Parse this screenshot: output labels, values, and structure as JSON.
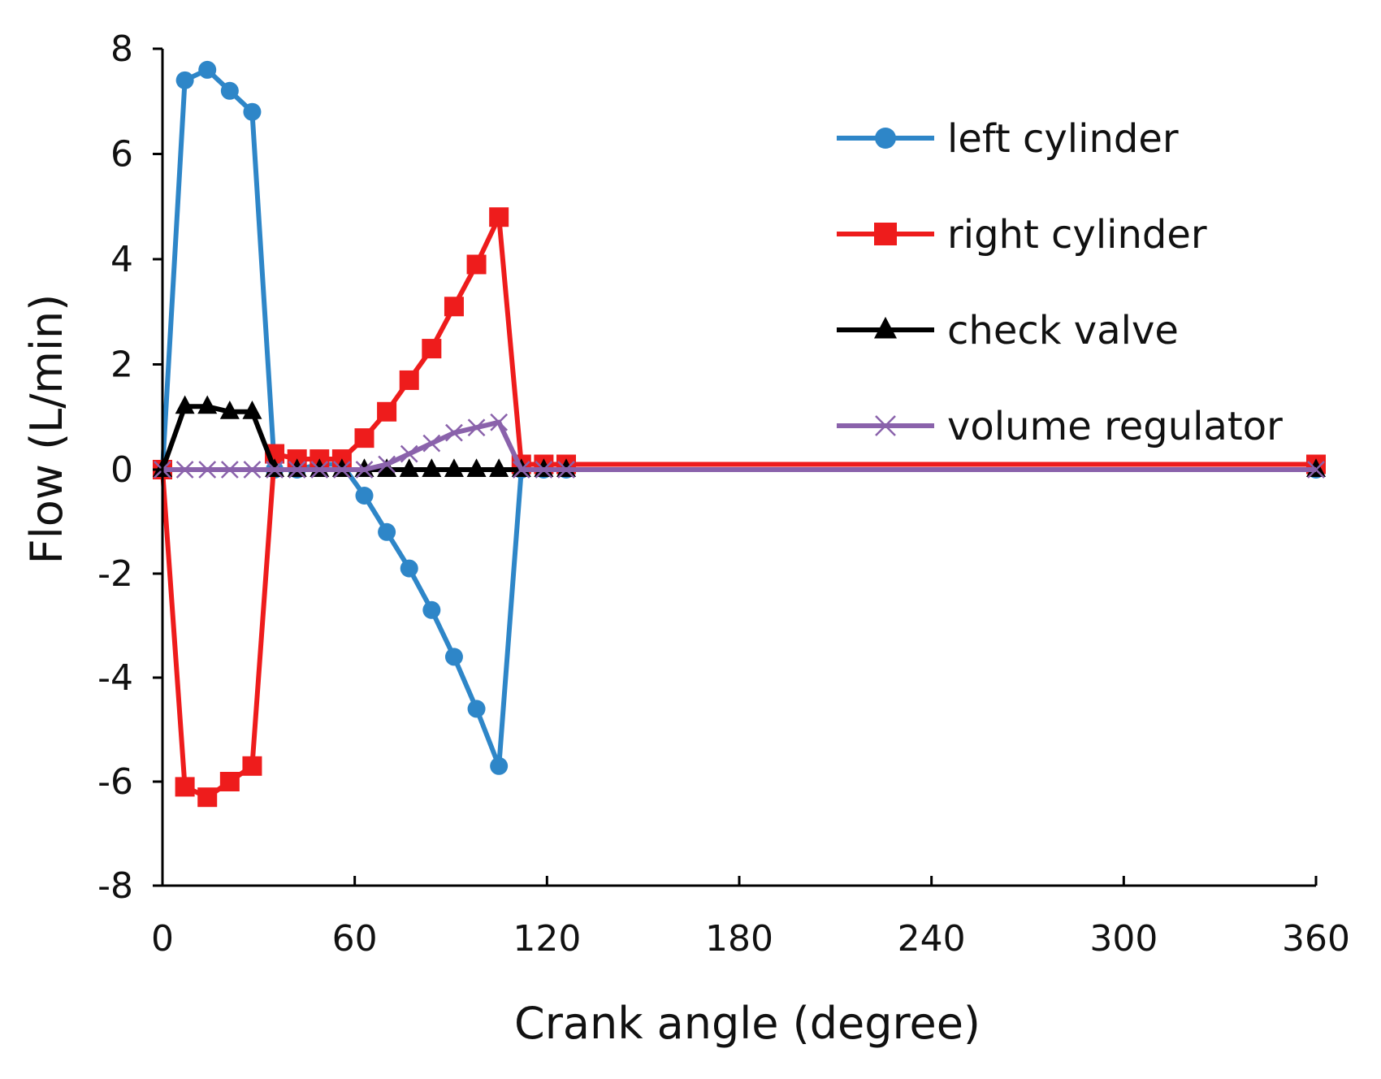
{
  "chart_data": {
    "type": "line",
    "title": "",
    "xlabel": "Crank angle (degree)",
    "ylabel": "Flow (L/min)",
    "xlim": [
      0,
      360
    ],
    "ylim": [
      -8,
      8
    ],
    "xticks": [
      "0",
      "60",
      "120",
      "180",
      "240",
      "300",
      "360"
    ],
    "yticks": [
      "8",
      "6",
      "4",
      "2",
      "0",
      "-2",
      "-4",
      "-6",
      "-8"
    ],
    "grid": false,
    "legend_position": "top-right",
    "series": [
      {
        "name": "left cylinder",
        "color": "#2e86c8",
        "marker": "circle",
        "x": [
          0,
          7,
          14,
          21,
          28,
          35,
          42,
          49,
          56,
          63,
          70,
          77,
          84,
          91,
          98,
          105,
          112,
          119,
          126,
          360
        ],
        "y": [
          0,
          7.4,
          7.6,
          7.2,
          6.8,
          0,
          0,
          0.1,
          0.1,
          -0.5,
          -1.2,
          -1.9,
          -2.7,
          -3.6,
          -4.6,
          -5.7,
          0,
          0,
          0,
          0
        ]
      },
      {
        "name": "right cylinder",
        "color": "#ee1c1c",
        "marker": "square",
        "x": [
          0,
          7,
          14,
          21,
          28,
          35,
          42,
          49,
          56,
          63,
          70,
          77,
          84,
          91,
          98,
          105,
          112,
          119,
          126,
          360
        ],
        "y": [
          0,
          -6.1,
          -6.3,
          -6.0,
          -5.7,
          0.3,
          0.2,
          0.2,
          0.2,
          0.6,
          1.1,
          1.7,
          2.3,
          3.1,
          3.9,
          4.8,
          0.1,
          0.1,
          0.1,
          0.1
        ]
      },
      {
        "name": "check valve",
        "color": "#000000",
        "marker": "triangle",
        "x": [
          0,
          7,
          14,
          21,
          28,
          35,
          42,
          49,
          56,
          63,
          70,
          77,
          84,
          91,
          98,
          105,
          112,
          119,
          126,
          360
        ],
        "y": [
          0,
          1.2,
          1.2,
          1.1,
          1.1,
          0,
          0,
          0,
          0,
          0,
          0,
          0,
          0,
          0,
          0,
          0,
          0,
          0,
          0,
          0
        ]
      },
      {
        "name": "volume regulator",
        "color": "#8a62ab",
        "marker": "x",
        "x": [
          0,
          7,
          14,
          21,
          28,
          35,
          42,
          49,
          56,
          63,
          70,
          77,
          84,
          91,
          98,
          105,
          112,
          119,
          126,
          360
        ],
        "y": [
          0,
          0,
          0,
          0,
          0,
          0,
          0,
          0,
          0,
          0,
          0.1,
          0.3,
          0.5,
          0.7,
          0.8,
          0.9,
          0,
          0,
          0,
          0
        ]
      }
    ]
  }
}
